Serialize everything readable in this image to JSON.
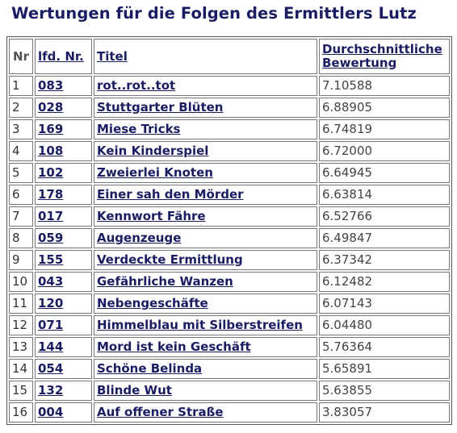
{
  "page": {
    "title": "Wertungen für die Folgen des Ermittlers Lutz"
  },
  "table": {
    "headers": {
      "nr": "Nr",
      "lfd": "lfd. Nr.",
      "titel": "Titel",
      "rating_line1": "Durchschnittliche",
      "rating_line2": "Bewertung"
    },
    "rows": [
      {
        "nr": "1",
        "lfd": "083",
        "titel": "rot..rot..tot",
        "rating": "7.10588"
      },
      {
        "nr": "2",
        "lfd": "028",
        "titel": "Stuttgarter Blüten",
        "rating": "6.88905"
      },
      {
        "nr": "3",
        "lfd": "169",
        "titel": "Miese Tricks",
        "rating": "6.74819"
      },
      {
        "nr": "4",
        "lfd": "108",
        "titel": "Kein Kinderspiel",
        "rating": "6.72000"
      },
      {
        "nr": "5",
        "lfd": "102",
        "titel": "Zweierlei Knoten",
        "rating": "6.64945"
      },
      {
        "nr": "6",
        "lfd": "178",
        "titel": "Einer sah den Mörder",
        "rating": "6.63814"
      },
      {
        "nr": "7",
        "lfd": "017",
        "titel": "Kennwort Fähre",
        "rating": "6.52766"
      },
      {
        "nr": "8",
        "lfd": "059",
        "titel": "Augenzeuge",
        "rating": "6.49847"
      },
      {
        "nr": "9",
        "lfd": "155",
        "titel": "Verdeckte Ermittlung",
        "rating": "6.37342"
      },
      {
        "nr": "10",
        "lfd": "043",
        "titel": "Gefährliche Wanzen",
        "rating": "6.12482"
      },
      {
        "nr": "11",
        "lfd": "120",
        "titel": "Nebengeschäfte",
        "rating": "6.07143"
      },
      {
        "nr": "12",
        "lfd": "071",
        "titel": "Himmelblau mit Silberstreifen",
        "rating": "6.04480"
      },
      {
        "nr": "13",
        "lfd": "144",
        "titel": "Mord ist kein Geschäft",
        "rating": "5.76364"
      },
      {
        "nr": "14",
        "lfd": "054",
        "titel": "Schöne Belinda",
        "rating": "5.65891"
      },
      {
        "nr": "15",
        "lfd": "132",
        "titel": "Blinde Wut",
        "rating": "5.63855"
      },
      {
        "nr": "16",
        "lfd": "004",
        "titel": "Auf offener Straße",
        "rating": "3.83057"
      }
    ]
  },
  "colors": {
    "heading": "#1b1d63",
    "link": "#1b1d63",
    "border": "#777777",
    "plain_text": "#444444"
  }
}
